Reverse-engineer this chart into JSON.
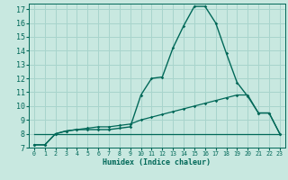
{
  "title": "",
  "xlabel": "Humidex (Indice chaleur)",
  "ylabel": "",
  "bg_color": "#c8e8e0",
  "grid_color": "#a8d4cc",
  "line_color": "#006858",
  "xlim": [
    -0.5,
    23.5
  ],
  "ylim": [
    7,
    17.4
  ],
  "xticks": [
    0,
    1,
    2,
    3,
    4,
    5,
    6,
    7,
    8,
    9,
    10,
    11,
    12,
    13,
    14,
    15,
    16,
    17,
    18,
    19,
    20,
    21,
    22,
    23
  ],
  "yticks": [
    7,
    8,
    9,
    10,
    11,
    12,
    13,
    14,
    15,
    16,
    17
  ],
  "curve1_x": [
    0,
    1,
    2,
    3,
    4,
    5,
    6,
    7,
    8,
    9,
    10,
    11,
    12,
    13,
    14,
    15,
    16,
    17,
    18,
    19,
    20,
    21,
    22,
    23
  ],
  "curve1_y": [
    7.2,
    7.2,
    8.0,
    8.2,
    8.3,
    8.3,
    8.3,
    8.3,
    8.4,
    8.5,
    10.8,
    12.0,
    12.1,
    14.2,
    15.8,
    17.2,
    17.2,
    16.0,
    13.8,
    11.7,
    10.7,
    9.5,
    9.5,
    8.0
  ],
  "curve2_x": [
    0,
    1,
    2,
    3,
    4,
    5,
    6,
    7,
    8,
    9,
    10,
    11,
    12,
    13,
    14,
    15,
    16,
    17,
    18,
    19,
    20,
    21,
    22,
    23
  ],
  "curve2_y": [
    7.2,
    7.2,
    8.0,
    8.2,
    8.3,
    8.4,
    8.5,
    8.5,
    8.6,
    8.7,
    9.0,
    9.2,
    9.4,
    9.6,
    9.8,
    10.0,
    10.2,
    10.4,
    10.6,
    10.8,
    10.8,
    9.5,
    9.5,
    8.0
  ],
  "curve3_x": [
    0,
    1,
    2,
    3,
    4,
    5,
    6,
    7,
    8,
    9,
    10,
    11,
    12,
    13,
    14,
    15,
    16,
    17,
    18,
    19,
    20,
    21,
    22,
    23
  ],
  "curve3_y": [
    8.0,
    8.0,
    8.0,
    8.0,
    8.0,
    8.0,
    8.0,
    8.0,
    8.0,
    8.0,
    8.0,
    8.0,
    8.0,
    8.0,
    8.0,
    8.0,
    8.0,
    8.0,
    8.0,
    8.0,
    8.0,
    8.0,
    8.0,
    8.0
  ],
  "xlabel_fontsize": 6.0,
  "ytick_fontsize": 6.0,
  "xtick_fontsize": 4.8
}
